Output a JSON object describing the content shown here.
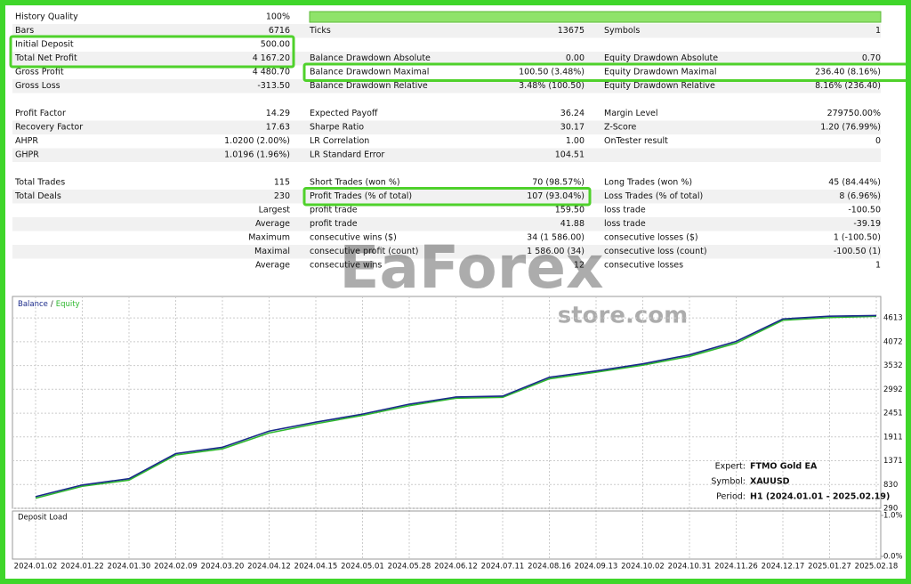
{
  "report": {
    "history_quality": {
      "label": "History Quality",
      "value": "100%"
    },
    "groups": [
      [
        {
          "left": [
            "Bars",
            "6716"
          ],
          "middle": [
            "Ticks",
            "13675"
          ],
          "right": [
            "Symbols",
            "1"
          ]
        },
        {
          "left": [
            "Initial Deposit",
            "500.00"
          ]
        },
        {
          "left": [
            "Total Net Profit",
            "4 167.20"
          ],
          "middle": [
            "Balance Drawdown Absolute",
            "0.00"
          ],
          "right": [
            "Equity Drawdown Absolute",
            "0.70"
          ]
        },
        {
          "left": [
            "Gross Profit",
            "4 480.70"
          ],
          "middle": [
            "Balance Drawdown Maximal",
            "100.50 (3.48%)"
          ],
          "right": [
            "Equity Drawdown Maximal",
            "236.40 (8.16%)"
          ]
        },
        {
          "left": [
            "Gross Loss",
            "-313.50"
          ],
          "middle": [
            "Balance Drawdown Relative",
            "3.48% (100.50)"
          ],
          "right": [
            "Equity Drawdown Relative",
            "8.16% (236.40)"
          ]
        }
      ],
      [
        {
          "left": [
            "Profit Factor",
            "14.29"
          ],
          "middle": [
            "Expected Payoff",
            "36.24"
          ],
          "right": [
            "Margin Level",
            "279750.00%"
          ]
        },
        {
          "left": [
            "Recovery Factor",
            "17.63"
          ],
          "middle": [
            "Sharpe Ratio",
            "30.17"
          ],
          "right": [
            "Z-Score",
            "1.20 (76.99%)"
          ]
        },
        {
          "left": [
            "AHPR",
            "1.0200 (2.00%)"
          ],
          "middle": [
            "LR Correlation",
            "1.00"
          ],
          "right": [
            "OnTester result",
            "0"
          ]
        },
        {
          "left": [
            "GHPR",
            "1.0196 (1.96%)"
          ],
          "middle": [
            "LR Standard Error",
            "104.51"
          ]
        }
      ],
      [
        {
          "left": [
            "Total Trades",
            "115"
          ],
          "middle": [
            "Short Trades (won %)",
            "70 (98.57%)"
          ],
          "right": [
            "Long Trades (won %)",
            "45 (84.44%)"
          ]
        },
        {
          "left": [
            "Total Deals",
            "230"
          ],
          "middle": [
            "Profit Trades (% of total)",
            "107 (93.04%)"
          ],
          "right": [
            "Loss Trades (% of total)",
            "8 (6.96%)"
          ]
        },
        {
          "left": [
            "Largest"
          ],
          "middle": [
            "profit trade",
            "159.50"
          ],
          "right": [
            "loss trade",
            "-100.50"
          ]
        },
        {
          "left": [
            "Average"
          ],
          "middle": [
            "profit trade",
            "41.88"
          ],
          "right": [
            "loss trade",
            "-39.19"
          ]
        },
        {
          "left": [
            "Maximum"
          ],
          "middle": [
            "consecutive wins ($)",
            "34 (1 586.00)"
          ],
          "right": [
            "consecutive losses ($)",
            "1 (-100.50)"
          ]
        },
        {
          "left": [
            "Maximal"
          ],
          "middle": [
            "consecutive profit (count)",
            "1 586.00 (34)"
          ],
          "right": [
            "consecutive loss (count)",
            "-100.50 (1)"
          ]
        },
        {
          "left": [
            "Average"
          ],
          "middle": [
            "consecutive wins",
            "12"
          ],
          "right": [
            "consecutive losses",
            "1"
          ]
        }
      ]
    ]
  },
  "watermark": {
    "text": "EaForex",
    "sub": "store.com"
  },
  "chart_data": {
    "type": "line",
    "legend_separator": "/",
    "categories": [
      "2024.01.02",
      "2024.01.22",
      "2024.01.30",
      "2024.02.09",
      "2024.03.20",
      "2024.04.12",
      "2024.04.15",
      "2024.05.01",
      "2024.05.28",
      "2024.06.12",
      "2024.07.11",
      "2024.08.16",
      "2024.09.13",
      "2024.10.02",
      "2024.10.31",
      "2024.11.26",
      "2024.12.17",
      "2025.01.27",
      "2025.02.18"
    ],
    "series": [
      {
        "name": "Balance",
        "color": "#1a2a8a",
        "values": [
          555,
          820,
          963,
          1533,
          1676,
          2043,
          2246,
          2430,
          2654,
          2817,
          2837,
          3265,
          3408,
          3571,
          3775,
          4080,
          4590,
          4651,
          4667
        ]
      },
      {
        "name": "Equity",
        "color": "#2fb82f",
        "values": [
          520,
          790,
          930,
          1500,
          1640,
          2000,
          2210,
          2400,
          2620,
          2790,
          2810,
          3230,
          3380,
          3540,
          3740,
          4040,
          4560,
          4620,
          4650
        ]
      }
    ],
    "ylim": [
      290,
      5100
    ],
    "yticks": [
      290,
      830,
      1371,
      1911,
      2451,
      2992,
      3532,
      4072,
      4613
    ],
    "grid": true,
    "info": [
      {
        "label": "Expert:",
        "value": "FTMO Gold EA"
      },
      {
        "label": "Symbol:",
        "value": "XAUUSD"
      },
      {
        "label": "Period:",
        "value": "H1 (2024.01.01 - 2025.02.19)"
      }
    ],
    "deposit_load": {
      "title": "Deposit Load",
      "ylim": [
        0,
        1
      ],
      "yticks": [
        {
          "value": 1,
          "label": "1.0%"
        },
        {
          "value": 0,
          "label": "0.0%"
        }
      ]
    }
  }
}
